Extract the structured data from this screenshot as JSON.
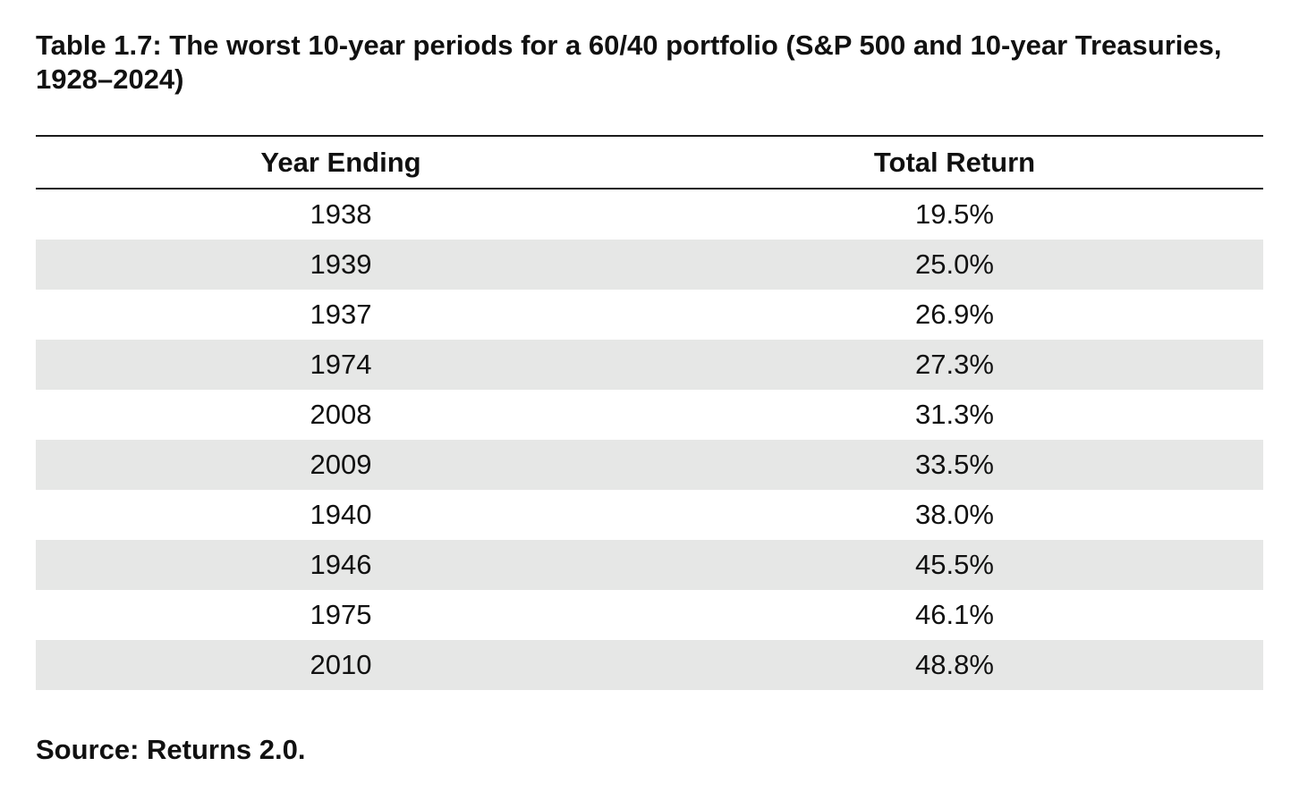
{
  "title": "Table 1.7: The worst 10-year periods for a 60/40 portfolio (S&P 500 and 10-year Treasuries, 1928–2024)",
  "table": {
    "headers": [
      "Year Ending",
      "Total Return"
    ],
    "rows": [
      [
        "1938",
        "19.5%"
      ],
      [
        "1939",
        "25.0%"
      ],
      [
        "1937",
        "26.9%"
      ],
      [
        "1974",
        "27.3%"
      ],
      [
        "2008",
        "31.3%"
      ],
      [
        "2009",
        "33.5%"
      ],
      [
        "1940",
        "38.0%"
      ],
      [
        "1946",
        "45.5%"
      ],
      [
        "1975",
        "46.1%"
      ],
      [
        "2010",
        "48.8%"
      ]
    ]
  },
  "source": "Source: Returns 2.0.",
  "colors": {
    "stripe": "#e6e7e6",
    "rule": "#1a1a1a",
    "text": "#111111"
  }
}
